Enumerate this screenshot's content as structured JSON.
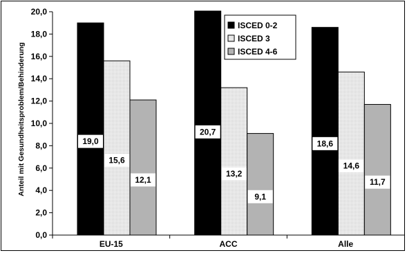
{
  "chart_data": {
    "type": "bar",
    "categories": [
      "EU-15",
      "ACC",
      "Alle"
    ],
    "series": [
      {
        "name": "ISCED 0-2",
        "values": [
          19.0,
          20.7,
          18.6
        ],
        "labels": [
          "19,0",
          "20,7",
          "18,6"
        ],
        "color": "#000000",
        "pattern": "solid"
      },
      {
        "name": "ISCED 3",
        "values": [
          15.6,
          13.2,
          14.6
        ],
        "labels": [
          "15,6",
          "13,2",
          "14,6"
        ],
        "color": "#e6e6e6",
        "pattern": "dotted"
      },
      {
        "name": "ISCED 4-6",
        "values": [
          12.1,
          9.1,
          11.7
        ],
        "labels": [
          "12,1",
          "9,1",
          "11,7"
        ],
        "color": "#b3b3b3",
        "pattern": "solid"
      }
    ],
    "ylabel": "Anteil mit Gesundheitsproblem/Behinderung",
    "xlabel": "",
    "title": "",
    "ylim": [
      0,
      20
    ],
    "ytick_values": [
      0,
      2,
      4,
      6,
      8,
      10,
      12,
      14,
      16,
      18,
      20
    ],
    "ytick_labels": [
      "0,0",
      "2,0",
      "4,0",
      "6,0",
      "8,0",
      "10,0",
      "12,0",
      "14,0",
      "16,0",
      "18,0",
      "20,0"
    ],
    "grid": false,
    "legend_position": "top-center"
  }
}
